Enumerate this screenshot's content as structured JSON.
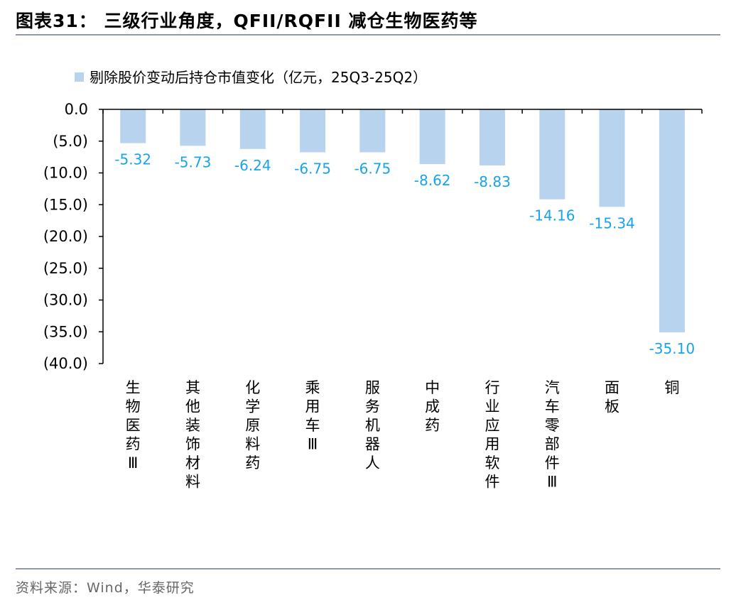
{
  "header": {
    "title": "图表31： 三级行业角度，QFII/RQFII 减仓生物医药等"
  },
  "footer": {
    "source": "资料来源：Wind，华泰研究"
  },
  "colors": {
    "bar": "#b7d3ee",
    "label": "#1aa3e8",
    "axis": "#000000",
    "rule": "#8f9aa6"
  },
  "chart_data": {
    "type": "bar",
    "title": "",
    "xlabel": "",
    "ylabel": "",
    "legend": {
      "position": "top-left",
      "entries": [
        "剔除股价变动后持仓市值变化（亿元，25Q3-25Q2）"
      ]
    },
    "grid": false,
    "ylim": [
      -40,
      0
    ],
    "yticks": [
      0,
      -5,
      -10,
      -15,
      -20,
      -25,
      -30,
      -35,
      -40
    ],
    "ytick_labels": [
      "0.0",
      "(5.0)",
      "(10.0)",
      "(15.0)",
      "(20.0)",
      "(25.0)",
      "(30.0)",
      "(35.0)",
      "(40.0)"
    ],
    "categories": [
      "生物医药Ⅲ",
      "其他装饰材料",
      "化学原料药",
      "乘用车Ⅲ",
      "服务机器人",
      "中成药",
      "行业应用软件",
      "汽车零部件Ⅲ",
      "面板",
      "铜"
    ],
    "series": [
      {
        "name": "剔除股价变动后持仓市值变化（亿元，25Q3-25Q2）",
        "values": [
          -5.32,
          -5.73,
          -6.24,
          -6.75,
          -6.75,
          -8.62,
          -8.83,
          -14.16,
          -15.34,
          -35.1
        ],
        "data_labels": [
          "-5.32",
          "-5.73",
          "-6.24",
          "-6.75",
          "-6.75",
          "-8.62",
          "-8.83",
          "-14.16",
          "-15.34",
          "-35.10"
        ]
      }
    ]
  }
}
